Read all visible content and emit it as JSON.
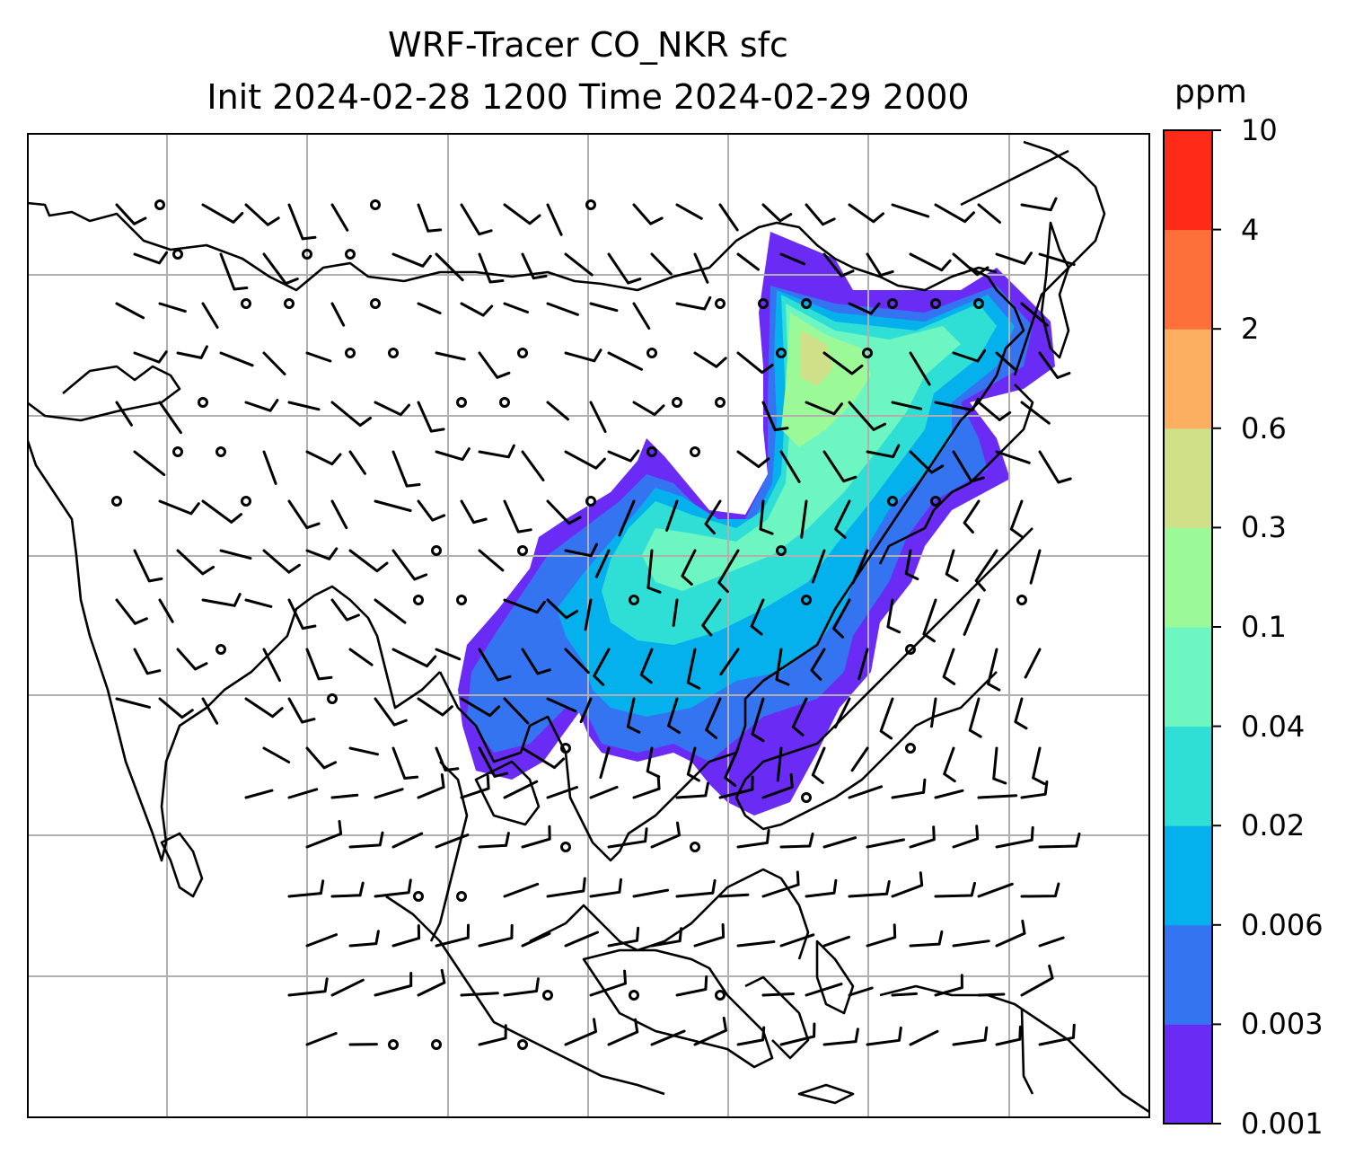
{
  "title": {
    "line1": "WRF-Tracer CO_NKR sfc",
    "line2": "Init 2024-02-28 1200 Time 2024-02-29 2000"
  },
  "colorbar": {
    "unit": "ppm",
    "levels": [
      "0.001",
      "0.003",
      "0.006",
      "0.02",
      "0.04",
      "0.1",
      "0.3",
      "0.6",
      "2",
      "4",
      "10"
    ],
    "colors": [
      "#6a2cf5",
      "#3474f0",
      "#05b1ec",
      "#2fdfd5",
      "#6ef6c2",
      "#9bfa97",
      "#cfe088",
      "#fcaf60",
      "#fd703a",
      "#fd2b17"
    ]
  },
  "map": {
    "background": "#ffffff",
    "gridline_color": "#b0b0b0",
    "coastline_color": "#000000",
    "barb_color": "#000000"
  }
}
